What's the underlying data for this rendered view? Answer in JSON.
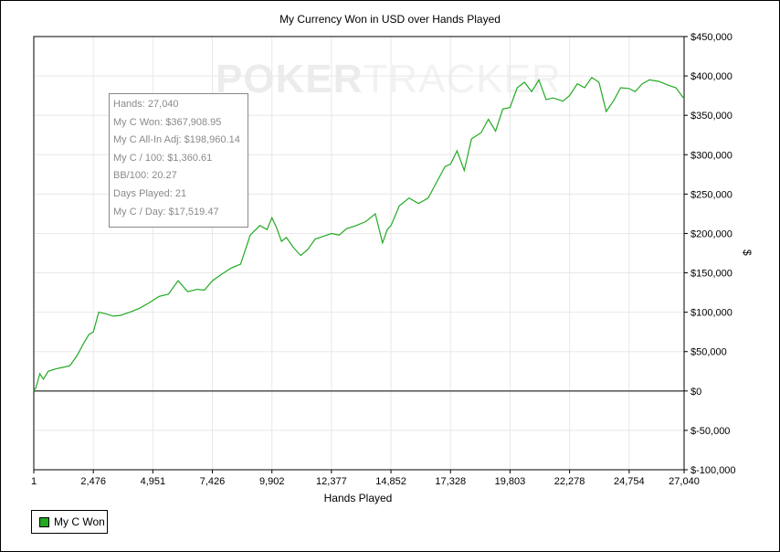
{
  "title": "My Currency Won in USD over Hands Played",
  "watermark": "POKERTRACKER",
  "colors": {
    "line": "#22aa22",
    "zero": "#000000",
    "grid": "#e8e8e8"
  },
  "chart_data": {
    "type": "line",
    "title": "My Currency Won in USD over Hands Played",
    "xlabel": "Hands Played",
    "ylabel": "$",
    "xlim": [
      1,
      27040
    ],
    "ylim": [
      -100000,
      450000
    ],
    "x_ticks": [
      "1",
      "2,476",
      "4,951",
      "7,426",
      "9,902",
      "12,377",
      "14,852",
      "17,328",
      "19,803",
      "22,278",
      "24,754",
      "27,040"
    ],
    "y_ticks": [
      "$450,000",
      "$400,000",
      "$350,000",
      "$300,000",
      "$250,000",
      "$200,000",
      "$150,000",
      "$100,000",
      "$50,000",
      "$0",
      "$-50,000",
      "$-100,000"
    ],
    "grid": true,
    "legend_position": "bottom-left",
    "series": [
      {
        "name": "My C Won",
        "x": [
          1,
          100,
          250,
          400,
          600,
          900,
          1200,
          1500,
          1800,
          2100,
          2300,
          2476,
          2700,
          3000,
          3300,
          3600,
          4000,
          4400,
          4800,
          4951,
          5200,
          5600,
          6000,
          6400,
          6800,
          7100,
          7426,
          7800,
          8200,
          8600,
          9000,
          9400,
          9700,
          9902,
          10100,
          10300,
          10500,
          10800,
          11100,
          11400,
          11700,
          12000,
          12377,
          12700,
          13000,
          13400,
          13800,
          14200,
          14500,
          14700,
          14852,
          15200,
          15600,
          16000,
          16400,
          16800,
          17100,
          17328,
          17600,
          17900,
          18200,
          18600,
          18900,
          19200,
          19500,
          19803,
          20100,
          20400,
          20700,
          21000,
          21300,
          21600,
          22000,
          22278,
          22600,
          22900,
          23200,
          23500,
          23800,
          24100,
          24400,
          24754,
          25000,
          25300,
          25600,
          26000,
          26400,
          26700,
          27040
        ],
        "y": [
          0,
          5000,
          22000,
          15000,
          25000,
          28000,
          30000,
          32000,
          45000,
          62000,
          72000,
          75000,
          100000,
          98000,
          95000,
          96000,
          100000,
          105000,
          112000,
          115000,
          120000,
          123000,
          140000,
          126000,
          129000,
          128000,
          140000,
          148000,
          156000,
          161000,
          198000,
          210000,
          205000,
          220000,
          207000,
          190000,
          195000,
          182000,
          172000,
          180000,
          193000,
          196000,
          200000,
          198000,
          206000,
          210000,
          215000,
          225000,
          188000,
          205000,
          210000,
          235000,
          245000,
          238000,
          245000,
          268000,
          285000,
          288000,
          305000,
          280000,
          320000,
          328000,
          345000,
          330000,
          358000,
          360000,
          385000,
          392000,
          380000,
          395000,
          370000,
          372000,
          368000,
          375000,
          390000,
          385000,
          398000,
          392000,
          355000,
          368000,
          385000,
          384000,
          380000,
          390000,
          395000,
          393000,
          388000,
          385000,
          371000
        ]
      }
    ]
  },
  "tooltip": {
    "lines": [
      "Hands: 27,040",
      "My C Won: $367,908.95",
      "My C All-In Adj: $198,960.14",
      "My C / 100: $1,360.61",
      "BB/100: 20.27",
      "Days Played: 21",
      "My C / Day: $17,519.47"
    ]
  },
  "legend": {
    "label": "My C Won"
  }
}
